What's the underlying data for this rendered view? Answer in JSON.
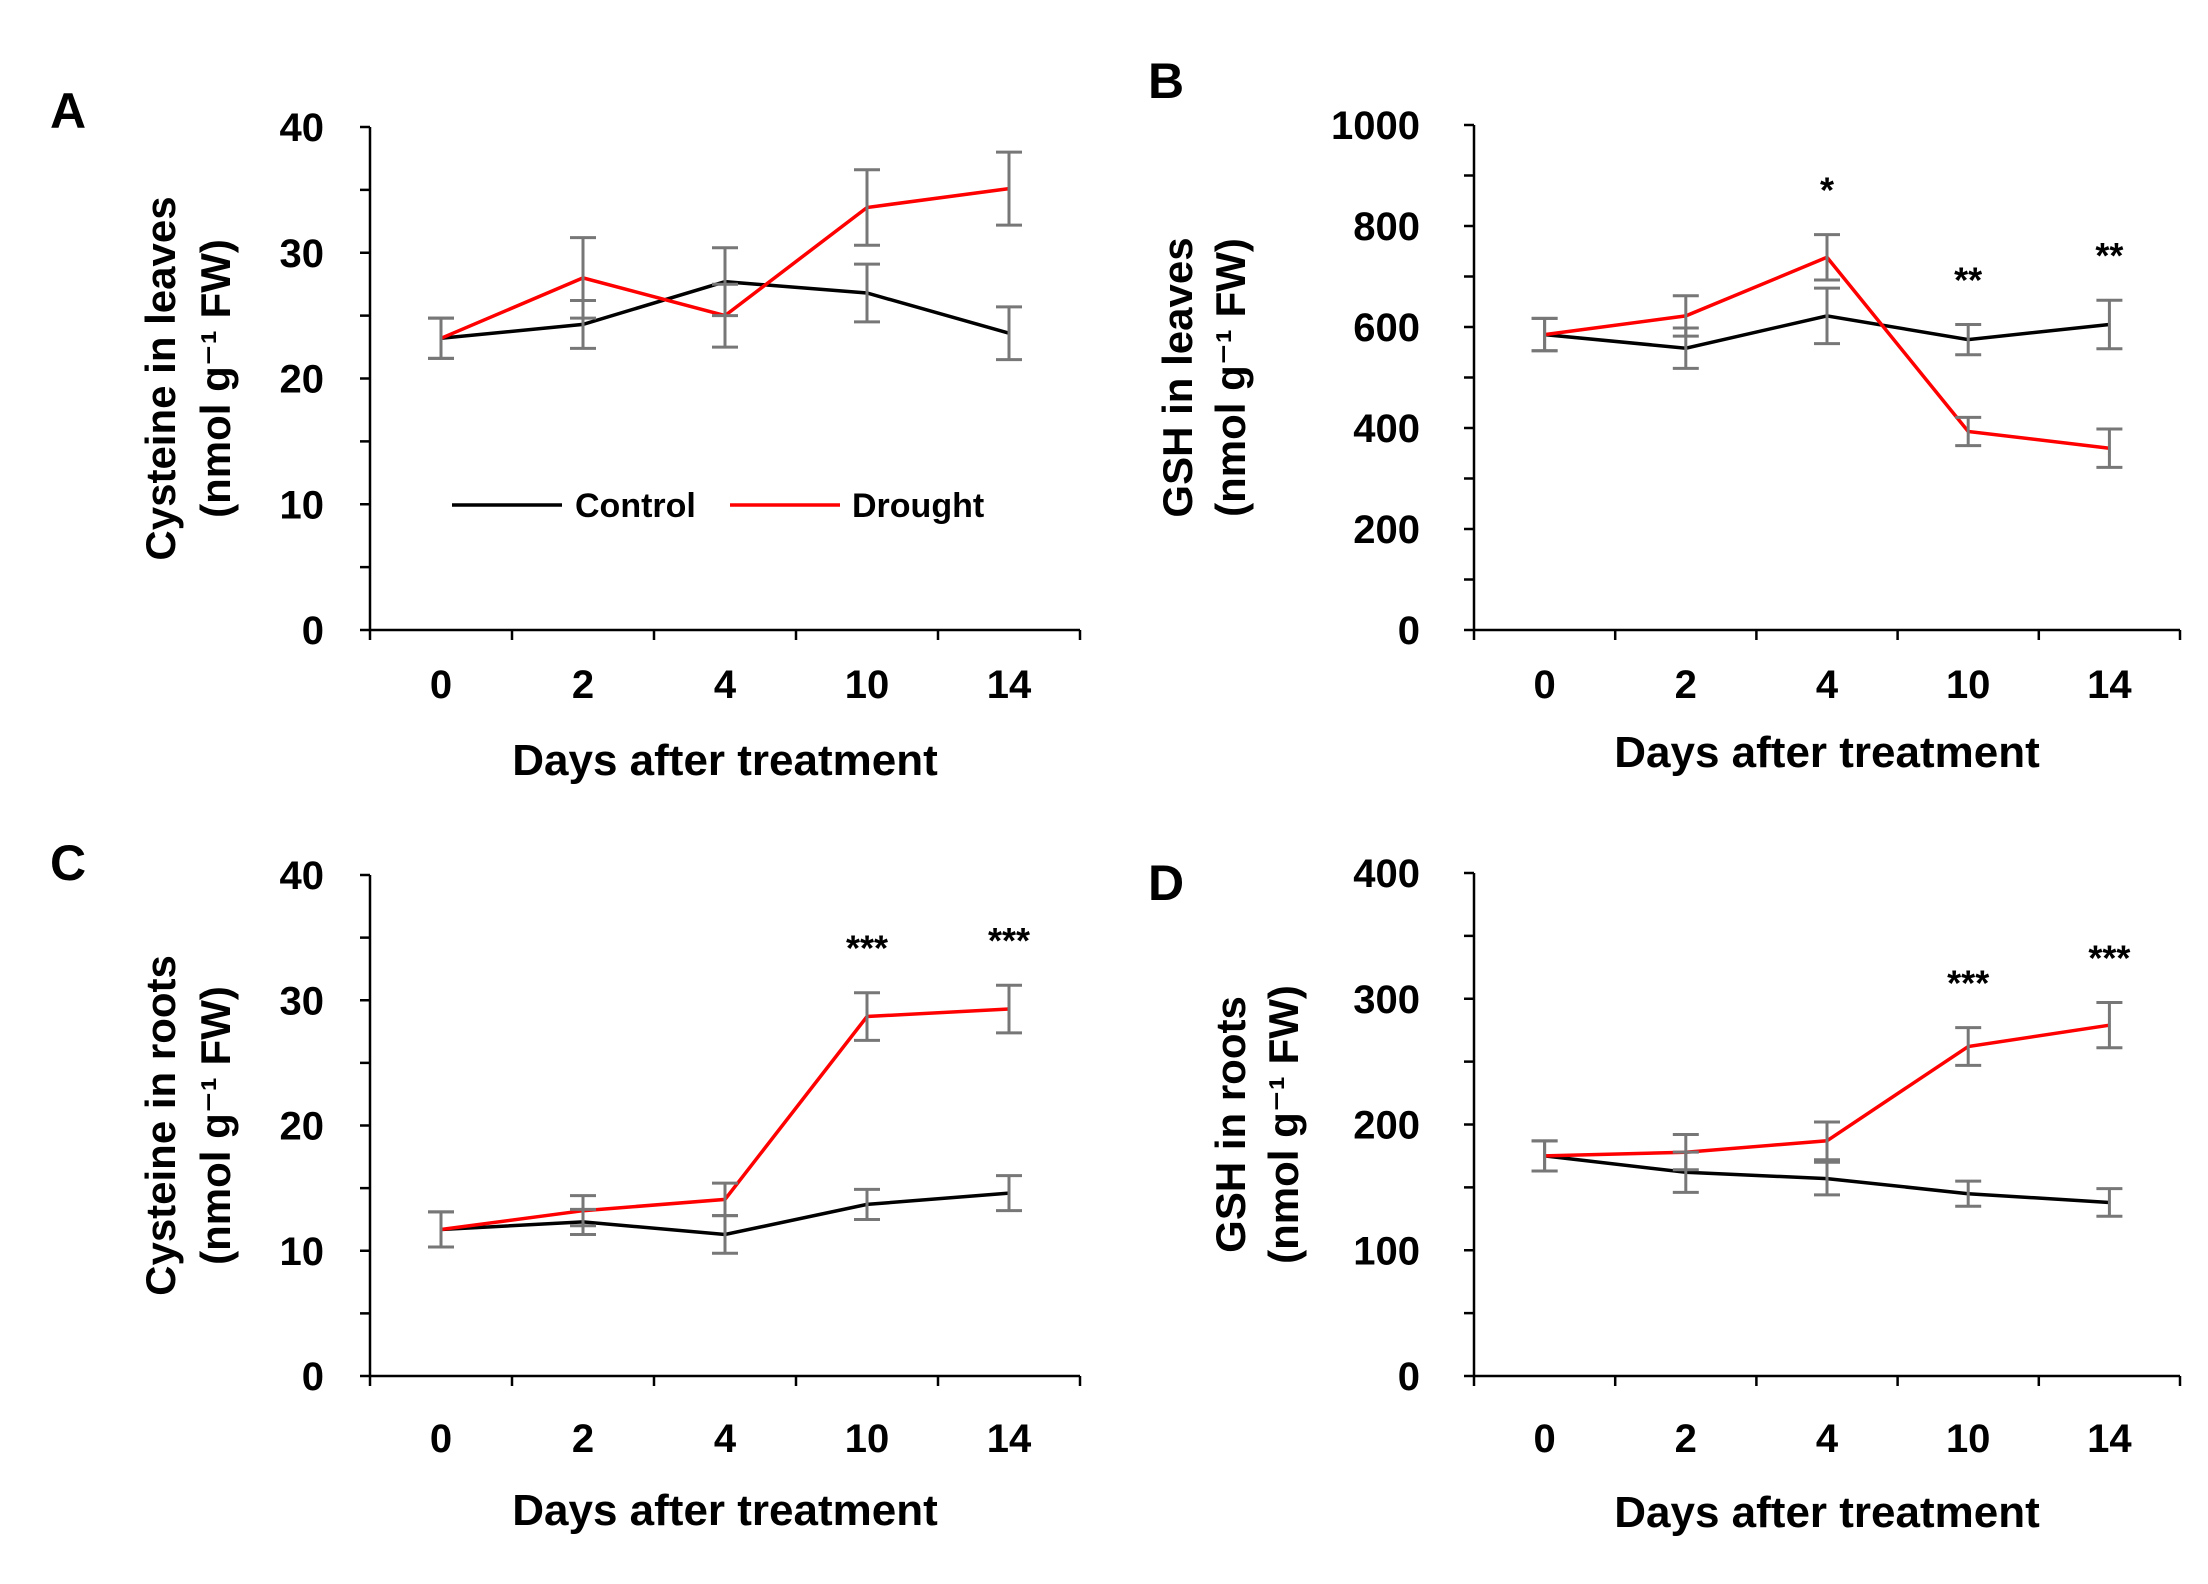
{
  "chart_data": [
    {
      "panel": "A",
      "type": "line",
      "categories": [
        "0",
        "2",
        "4",
        "10",
        "14"
      ],
      "xlabel": "Days after treatment",
      "ylabel_line1": "Cysteine in leaves",
      "ylabel_line2": "(nmol g⁻¹ FW)",
      "ylim": [
        0,
        40
      ],
      "yticks": [
        0,
        10,
        20,
        30,
        40
      ],
      "series": [
        {
          "name": "Control",
          "color": "#000000",
          "values": [
            23.2,
            24.3,
            27.7,
            26.8,
            23.6
          ],
          "errors": [
            1.6,
            1.9,
            2.7,
            2.3,
            2.1
          ]
        },
        {
          "name": "Drought",
          "color": "#ff0000",
          "values": [
            23.2,
            28.0,
            25.0,
            33.6,
            35.1
          ],
          "errors": [
            1.6,
            3.2,
            2.5,
            3.0,
            2.9
          ]
        }
      ],
      "significance": [
        "",
        "",
        "",
        "",
        ""
      ],
      "legend": {
        "position": "bottom-center",
        "control_label": "Control",
        "drought_label": "Drought"
      }
    },
    {
      "panel": "B",
      "type": "line",
      "categories": [
        "0",
        "2",
        "4",
        "10",
        "14"
      ],
      "xlabel": "Days after treatment",
      "ylabel_line1": "GSH in leaves",
      "ylabel_line2": "(nmol g⁻¹ FW)",
      "ylim": [
        0,
        1000
      ],
      "yticks": [
        0,
        200,
        400,
        600,
        800,
        1000
      ],
      "series": [
        {
          "name": "Control",
          "color": "#000000",
          "values": [
            585,
            558,
            622,
            575,
            605
          ],
          "errors": [
            32,
            40,
            55,
            30,
            48
          ]
        },
        {
          "name": "Drought",
          "color": "#ff0000",
          "values": [
            585,
            622,
            738,
            393,
            360
          ],
          "errors": [
            32,
            40,
            45,
            28,
            38
          ]
        }
      ],
      "significance": [
        "",
        "",
        "*",
        "**",
        "**"
      ]
    },
    {
      "panel": "C",
      "type": "line",
      "categories": [
        "0",
        "2",
        "4",
        "10",
        "14"
      ],
      "xlabel": "Days after treatment",
      "ylabel_line1": "Cysteine in roots",
      "ylabel_line2": "(nmol g⁻¹ FW)",
      "ylim": [
        0,
        40
      ],
      "yticks": [
        0,
        10,
        20,
        30,
        40
      ],
      "series": [
        {
          "name": "Control",
          "color": "#000000",
          "values": [
            11.7,
            12.3,
            11.3,
            13.7,
            14.6
          ],
          "errors": [
            1.4,
            1.0,
            1.5,
            1.2,
            1.4
          ]
        },
        {
          "name": "Drought",
          "color": "#ff0000",
          "values": [
            11.7,
            13.2,
            14.1,
            28.7,
            29.3
          ],
          "errors": [
            1.4,
            1.2,
            1.3,
            1.9,
            1.9
          ]
        }
      ],
      "significance": [
        "",
        "",
        "",
        "***",
        "***"
      ]
    },
    {
      "panel": "D",
      "type": "line",
      "categories": [
        "0",
        "2",
        "4",
        "10",
        "14"
      ],
      "xlabel": "Days after treatment",
      "ylabel_line1": "GSH in roots",
      "ylabel_line2": "(nmol g⁻¹ FW)",
      "ylim": [
        0,
        400
      ],
      "yticks": [
        0,
        100,
        200,
        300,
        400
      ],
      "series": [
        {
          "name": "Control",
          "color": "#000000",
          "values": [
            175,
            162,
            157,
            145,
            138
          ],
          "errors": [
            12,
            16,
            13,
            10,
            11
          ]
        },
        {
          "name": "Drought",
          "color": "#ff0000",
          "values": [
            175,
            178,
            187,
            262,
            279
          ],
          "errors": [
            12,
            14,
            15,
            15,
            18
          ]
        }
      ],
      "significance": [
        "",
        "",
        "",
        "***",
        "***"
      ]
    }
  ],
  "style": {
    "errorbar_color": "#777777",
    "axis_color": "#000000"
  }
}
